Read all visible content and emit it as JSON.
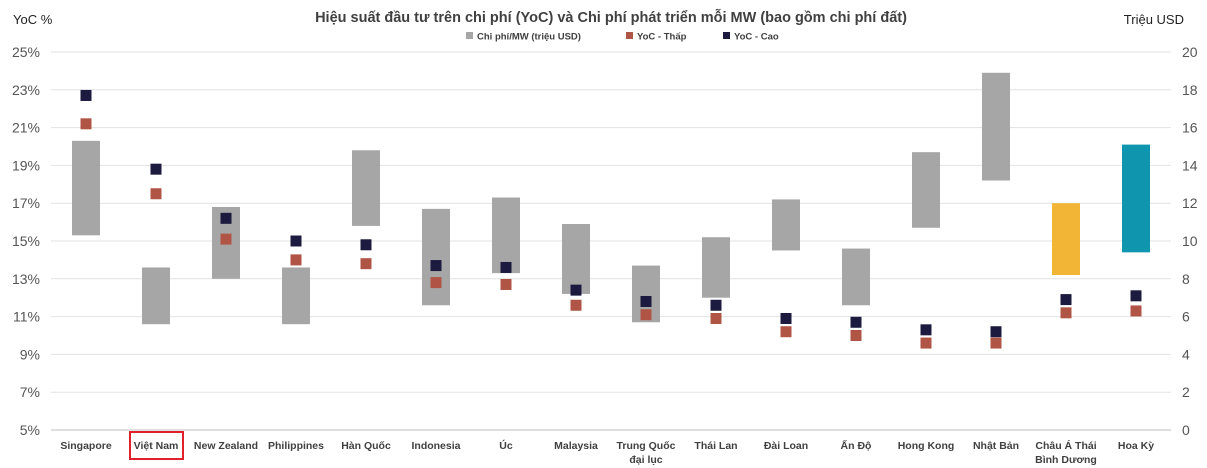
{
  "chart_data": {
    "type": "bar",
    "title": "Hiệu suất đầu tư trên chi phí (YoC) và Chi phí phát triển mỗi MW (bao gồm chi phí đất)",
    "ylabel_left": "YoC %",
    "ylabel_right": "Triệu USD",
    "y_left": {
      "min": 5,
      "max": 25,
      "ticks": [
        5,
        7,
        9,
        11,
        13,
        15,
        17,
        19,
        21,
        23,
        25
      ],
      "suffix": "%"
    },
    "y_right": {
      "min": 0,
      "max": 20,
      "ticks": [
        0,
        2,
        4,
        6,
        8,
        10,
        12,
        14,
        16,
        18,
        20
      ]
    },
    "legend": [
      {
        "label": "Chi phí/MW (triệu USD)",
        "color": "#a6a6a6"
      },
      {
        "label": "YoC - Thấp",
        "color": "#b05545"
      },
      {
        "label": "YoC - Cao",
        "color": "#1c1a3f"
      }
    ],
    "highlighted_category": "Việt Nam",
    "highlight_color": "#e0202a",
    "categories": [
      "Singapore",
      "Việt Nam",
      "New Zealand",
      "Philippines",
      "Hàn Quốc",
      "Indonesia",
      "Úc",
      "Malaysia",
      "Trung Quốc đại lục",
      "Thái Lan",
      "Đài Loan",
      "Ấn Độ",
      "Hong Kong",
      "Nhật Bản",
      "Châu Á Thái Bình Dương",
      "Hoa Kỳ"
    ],
    "series": [
      {
        "name": "Chi phí/MW (triệu USD)",
        "kind": "floating-bar",
        "low": [
          10.3,
          5.6,
          8.0,
          5.6,
          10.8,
          6.6,
          8.3,
          7.2,
          5.7,
          7.0,
          9.5,
          6.6,
          10.7,
          13.2,
          8.2,
          9.4
        ],
        "high": [
          15.3,
          8.6,
          11.8,
          8.6,
          14.8,
          11.7,
          12.3,
          10.9,
          8.7,
          10.2,
          12.2,
          9.6,
          14.7,
          18.9,
          12.0,
          15.1
        ]
      },
      {
        "name": "YoC - Thấp",
        "kind": "marker",
        "values": [
          21.2,
          17.5,
          15.1,
          14.0,
          13.8,
          12.8,
          12.7,
          11.6,
          11.1,
          10.9,
          10.2,
          10.0,
          9.6,
          9.6,
          11.2,
          11.3
        ]
      },
      {
        "name": "YoC - Cao",
        "kind": "marker",
        "values": [
          22.7,
          18.8,
          16.2,
          15.0,
          14.8,
          13.7,
          13.6,
          12.4,
          11.8,
          11.6,
          10.9,
          10.7,
          10.3,
          10.2,
          11.9,
          12.1
        ]
      }
    ],
    "bar_colors": [
      "#a6a6a6",
      "#a6a6a6",
      "#a6a6a6",
      "#a6a6a6",
      "#a6a6a6",
      "#a6a6a6",
      "#a6a6a6",
      "#a6a6a6",
      "#a6a6a6",
      "#a6a6a6",
      "#a6a6a6",
      "#a6a6a6",
      "#a6a6a6",
      "#a6a6a6",
      "#f2b535",
      "#0f95ad"
    ],
    "low_color": "#b05545",
    "high_color": "#1c1a3f",
    "gridlines": true
  }
}
